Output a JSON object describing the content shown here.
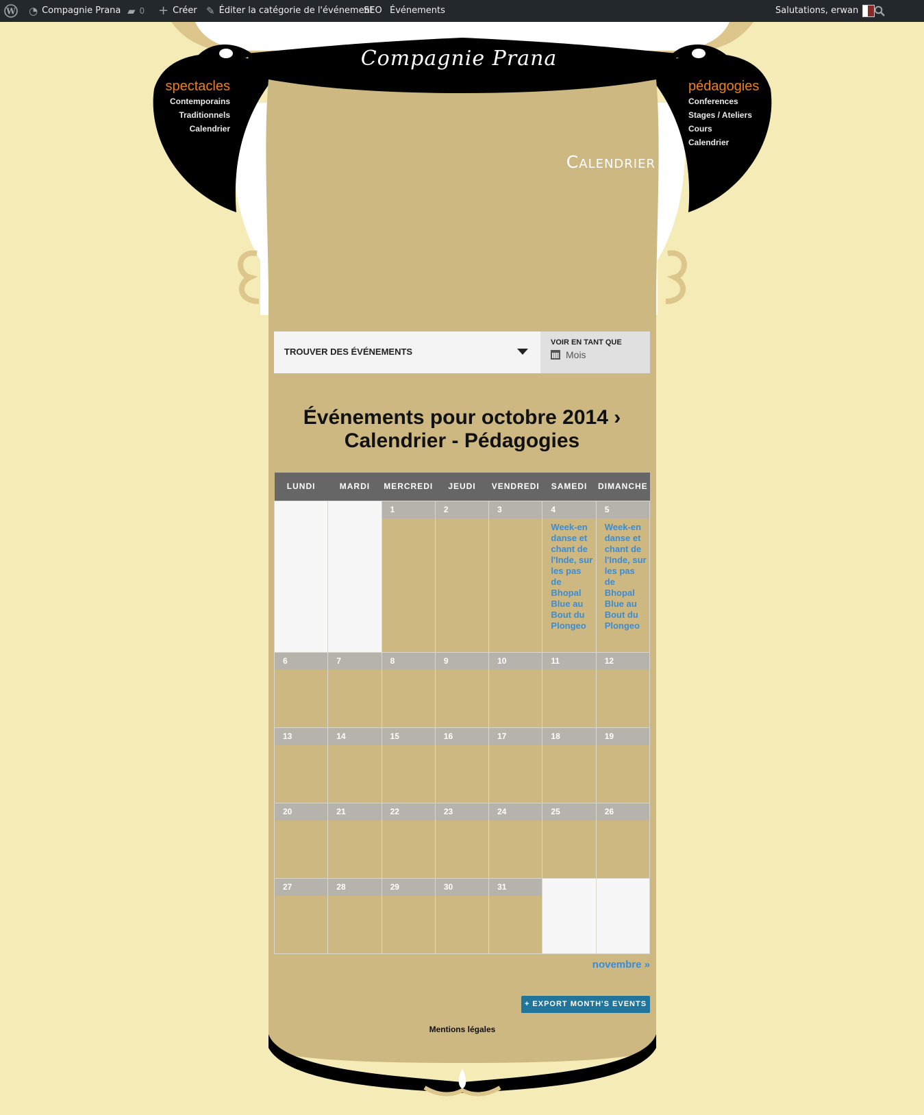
{
  "admin_bar": {
    "site_name": "Compagnie Prana",
    "comments_count": "0",
    "new_label": "Créer",
    "edit_label": "Éditer la catégorie de l'événement",
    "seo_label": "SEO",
    "events_label": "Événements",
    "greeting": "Salutations, erwan"
  },
  "logo_text": "Compagnie Prana",
  "nav_left": {
    "heading": "spectacles",
    "items": [
      "Contemporains",
      "Traditionnels",
      "Calendrier"
    ]
  },
  "nav_right": {
    "heading": "pédagogies",
    "items": [
      "Conferences",
      "Stages / Ateliers",
      "Cours",
      "Calendrier"
    ]
  },
  "page_title": "Calendrier",
  "events_bar": {
    "find_label": "TROUVER DES ÉVÉNEMENTS",
    "view_as_label": "VOIR EN TANT QUE",
    "view_value": "Mois"
  },
  "month_title_line1": "Événements pour octobre 2014 ›",
  "month_title_line2": "Calendrier - Pédagogies",
  "calendar": {
    "weekdays": [
      "LUNDI",
      "MARDI",
      "MERCREDI",
      "JEUDI",
      "VENDREDI",
      "SAMEDI",
      "DIMANCHE"
    ],
    "event_text": "Week-en danse et chant de l'Inde, sur les pas de Bhopal Blue au Bout du Plongeo",
    "days": [
      "1",
      "2",
      "3",
      "4",
      "5",
      "6",
      "7",
      "8",
      "9",
      "10",
      "11",
      "12",
      "13",
      "14",
      "15",
      "16",
      "17",
      "18",
      "19",
      "20",
      "21",
      "22",
      "23",
      "24",
      "25",
      "26",
      "27",
      "28",
      "29",
      "30",
      "31"
    ]
  },
  "next_link": "novembre »",
  "export_label": "+ EXPORT MONTH'S EVENTS",
  "footer_link": "Mentions légales",
  "colors": {
    "page_bg": "#f4ebb7",
    "content_bg": "#cdb882",
    "accent_orange": "#f07f15",
    "link_blue": "#3a8cd6",
    "button_blue": "#21759b"
  }
}
